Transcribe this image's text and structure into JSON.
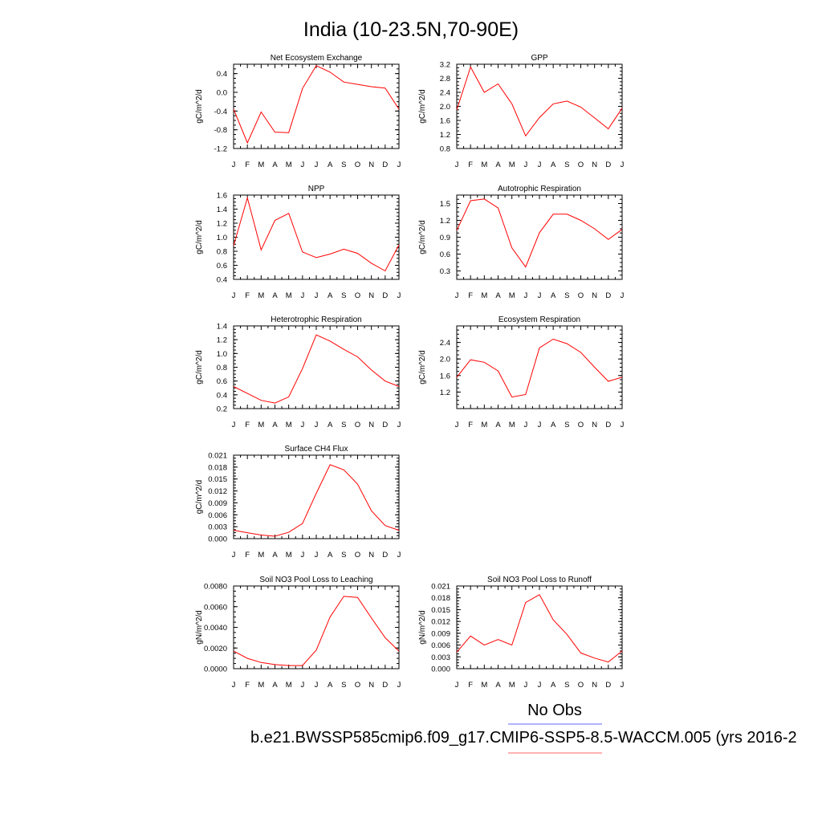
{
  "title": "India (10-23.5N,70-90E)",
  "legend": {
    "items": [
      {
        "label": "No Obs",
        "color": "#6666ff"
      },
      {
        "label": "b.e21.BWSSP585cmip6.f09_g17.CMIP6-SSP5-8.5-WACCM.005 (yrs 2016-2",
        "color": "#ff6666"
      }
    ]
  },
  "chart_data": [
    {
      "type": "line",
      "title": "Net Ecosystem Exchange",
      "ylabel": "gC/m^2/d",
      "categories": [
        "J",
        "F",
        "M",
        "A",
        "M",
        "J",
        "J",
        "A",
        "S",
        "O",
        "N",
        "D",
        "J"
      ],
      "ylim": [
        -1.2,
        0.6
      ],
      "yticks": [
        "0.4",
        "0.0",
        "-0.4",
        "-0.8",
        "-1.2"
      ],
      "series": [
        {
          "color": "#ff0000",
          "values": [
            -0.36,
            -1.08,
            -0.42,
            -0.85,
            -0.86,
            0.08,
            0.57,
            0.43,
            0.22,
            0.17,
            0.12,
            0.09,
            -0.36
          ]
        }
      ]
    },
    {
      "type": "line",
      "title": "GPP",
      "ylabel": "gC/m^2/d",
      "categories": [
        "J",
        "F",
        "M",
        "A",
        "M",
        "J",
        "J",
        "A",
        "S",
        "O",
        "N",
        "D",
        "J"
      ],
      "ylim": [
        0.8,
        3.2
      ],
      "yticks": [
        "3.2",
        "2.8",
        "2.4",
        "2.0",
        "1.6",
        "1.2",
        "0.8"
      ],
      "series": [
        {
          "color": "#ff0000",
          "values": [
            1.9,
            3.12,
            2.4,
            2.64,
            2.07,
            1.16,
            1.68,
            2.07,
            2.15,
            1.98,
            1.67,
            1.36,
            1.95
          ]
        }
      ]
    },
    {
      "type": "line",
      "title": "NPP",
      "ylabel": "gC/m^2/d",
      "categories": [
        "J",
        "F",
        "M",
        "A",
        "M",
        "J",
        "J",
        "A",
        "S",
        "O",
        "N",
        "D",
        "J"
      ],
      "ylim": [
        0.4,
        1.6
      ],
      "yticks": [
        "1.6",
        "1.4",
        "1.2",
        "1.0",
        "0.8",
        "0.6",
        "0.4"
      ],
      "series": [
        {
          "color": "#ff0000",
          "values": [
            0.88,
            1.56,
            0.82,
            1.24,
            1.34,
            0.79,
            0.71,
            0.76,
            0.83,
            0.77,
            0.63,
            0.52,
            0.89
          ]
        }
      ]
    },
    {
      "type": "line",
      "title": "Autotrophic Respiration",
      "ylabel": "gC/m^2/d",
      "categories": [
        "J",
        "F",
        "M",
        "A",
        "M",
        "J",
        "J",
        "A",
        "S",
        "O",
        "N",
        "D",
        "J"
      ],
      "ylim": [
        0.15,
        1.65
      ],
      "yticks": [
        "1.5",
        "1.2",
        "0.9",
        "0.6",
        "0.3"
      ],
      "series": [
        {
          "color": "#ff0000",
          "values": [
            1.02,
            1.55,
            1.58,
            1.42,
            0.71,
            0.37,
            0.98,
            1.31,
            1.31,
            1.2,
            1.05,
            0.86,
            1.04
          ]
        }
      ]
    },
    {
      "type": "line",
      "title": "Heterotrophic Respiration",
      "ylabel": "gC/m^2/d",
      "categories": [
        "J",
        "F",
        "M",
        "A",
        "M",
        "J",
        "J",
        "A",
        "S",
        "O",
        "N",
        "D",
        "J"
      ],
      "ylim": [
        0.2,
        1.4
      ],
      "yticks": [
        "1.4",
        "1.2",
        "1.0",
        "0.8",
        "0.6",
        "0.4",
        "0.2"
      ],
      "series": [
        {
          "color": "#ff0000",
          "values": [
            0.52,
            0.42,
            0.32,
            0.28,
            0.37,
            0.78,
            1.27,
            1.18,
            1.06,
            0.95,
            0.76,
            0.6,
            0.52
          ]
        }
      ]
    },
    {
      "type": "line",
      "title": "Ecosystem Respiration",
      "ylabel": "gC/m^2/d",
      "categories": [
        "J",
        "F",
        "M",
        "A",
        "M",
        "J",
        "J",
        "A",
        "S",
        "O",
        "N",
        "D",
        "J"
      ],
      "ylim": [
        0.8,
        2.8
      ],
      "yticks": [
        "2.4",
        "2.0",
        "1.6",
        "1.2"
      ],
      "series": [
        {
          "color": "#ff0000",
          "values": [
            1.56,
            1.98,
            1.92,
            1.71,
            1.08,
            1.14,
            2.27,
            2.48,
            2.37,
            2.16,
            1.8,
            1.46,
            1.56
          ]
        }
      ]
    },
    {
      "type": "line",
      "title": "Surface CH4 Flux",
      "ylabel": "gC/m^2/d",
      "categories": [
        "J",
        "F",
        "M",
        "A",
        "M",
        "J",
        "J",
        "A",
        "S",
        "O",
        "N",
        "D",
        "J"
      ],
      "ylim": [
        0.0,
        0.021
      ],
      "yticks": [
        "0.021",
        "0.018",
        "0.015",
        "0.012",
        "0.009",
        "0.006",
        "0.003",
        "0.000"
      ],
      "series": [
        {
          "color": "#ff0000",
          "values": [
            0.0021,
            0.0015,
            0.0009,
            0.0006,
            0.0016,
            0.0038,
            0.0114,
            0.0186,
            0.0173,
            0.0137,
            0.007,
            0.0033,
            0.0021
          ]
        }
      ]
    },
    {
      "type": "line",
      "title": "Soil NO3 Pool Loss to Leaching",
      "ylabel": "gN/m^2/d",
      "categories": [
        "J",
        "F",
        "M",
        "A",
        "M",
        "J",
        "J",
        "A",
        "S",
        "O",
        "N",
        "D",
        "J"
      ],
      "ylim": [
        0.0,
        0.008
      ],
      "yticks": [
        "0.0080",
        "0.0060",
        "0.0040",
        "0.0020",
        "0.0000"
      ],
      "series": [
        {
          "color": "#ff0000",
          "values": [
            0.0017,
            0.001,
            0.0006,
            0.0004,
            0.0003,
            0.0003,
            0.0018,
            0.005,
            0.007,
            0.0069,
            0.0049,
            0.003,
            0.0017
          ]
        }
      ]
    },
    {
      "type": "line",
      "title": "Soil NO3 Pool Loss to Runoff",
      "ylabel": "gN/m^2/d",
      "categories": [
        "J",
        "F",
        "M",
        "A",
        "M",
        "J",
        "J",
        "A",
        "S",
        "O",
        "N",
        "D",
        "J"
      ],
      "ylim": [
        0.0,
        0.021
      ],
      "yticks": [
        "0.021",
        "0.018",
        "0.015",
        "0.012",
        "0.009",
        "0.006",
        "0.003",
        "0.000"
      ],
      "series": [
        {
          "color": "#ff0000",
          "values": [
            0.0042,
            0.0083,
            0.006,
            0.0074,
            0.006,
            0.0168,
            0.0188,
            0.0124,
            0.0087,
            0.004,
            0.0027,
            0.0017,
            0.0045
          ]
        }
      ]
    }
  ]
}
